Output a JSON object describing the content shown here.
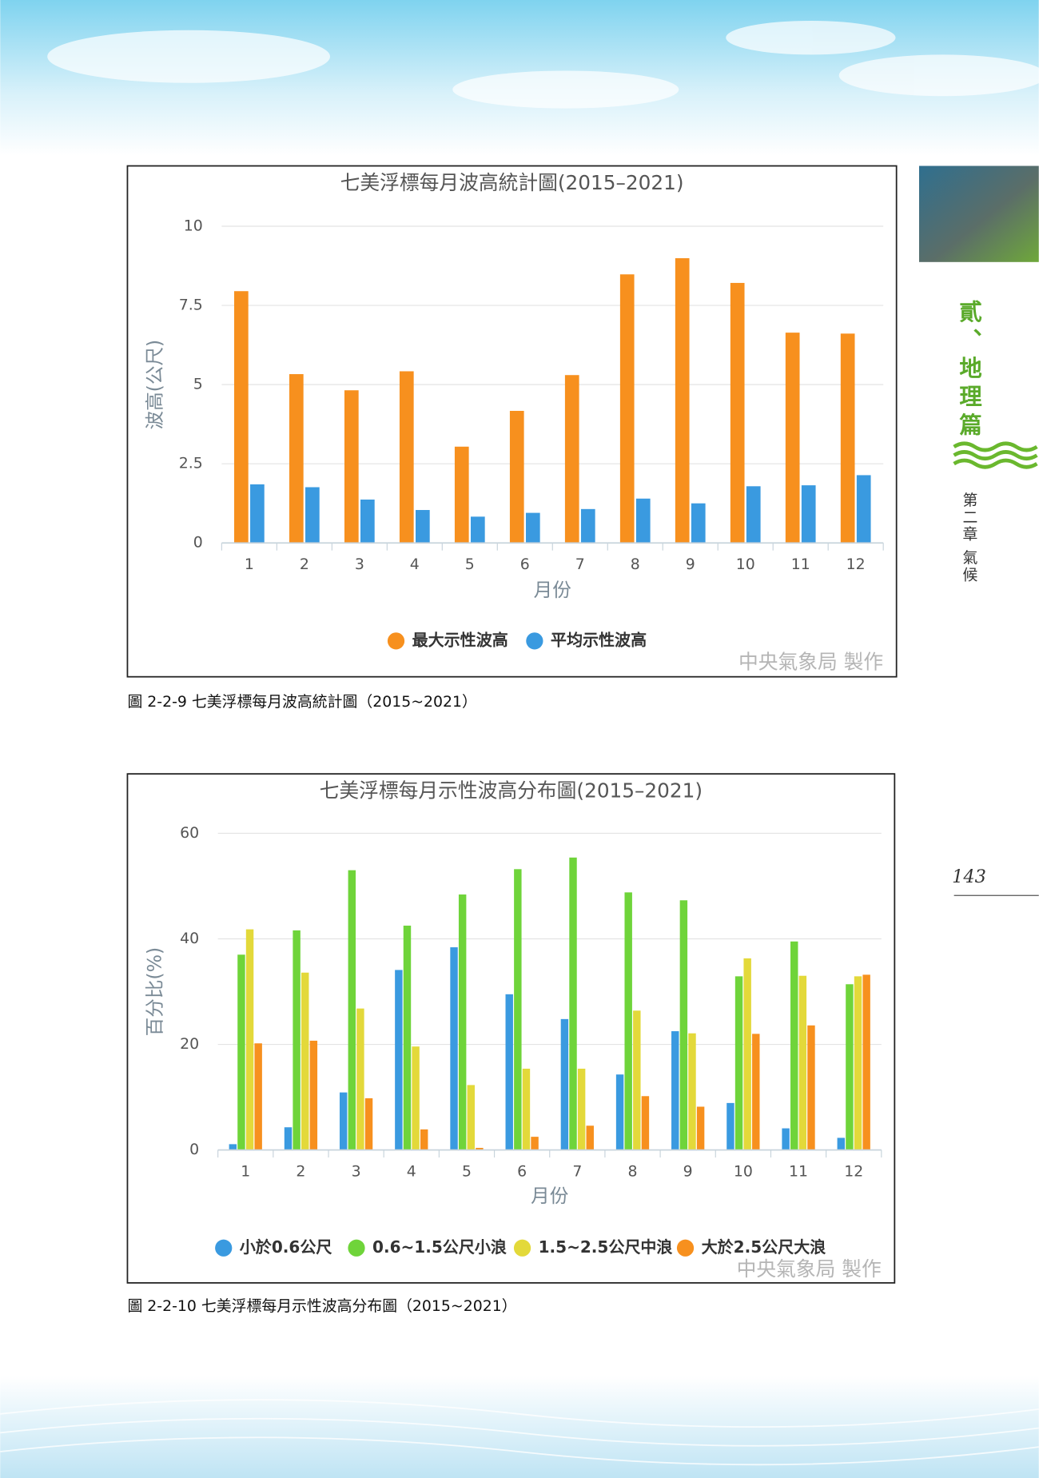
{
  "page": {
    "section": "貳、地理篇",
    "chapter": "第二章 氣候",
    "number": "143"
  },
  "chart_data": [
    {
      "type": "bar",
      "title": "七美浮標每月波高統計圖(2015–2021)",
      "x_label": "月份",
      "y_label": "波高(公尺)",
      "categories": [
        "1",
        "2",
        "3",
        "4",
        "5",
        "6",
        "7",
        "8",
        "9",
        "10",
        "11",
        "12"
      ],
      "series": [
        {
          "name": "最大示性波高",
          "color": "#f7901e",
          "values": [
            7.95,
            5.33,
            4.82,
            5.42,
            3.04,
            4.17,
            5.3,
            8.48,
            8.99,
            8.21,
            6.64,
            6.61
          ]
        },
        {
          "name": "平均示性波高",
          "color": "#3a9ae0",
          "values": [
            1.85,
            1.76,
            1.37,
            1.04,
            0.83,
            0.95,
            1.07,
            1.4,
            1.25,
            1.79,
            1.82,
            2.14
          ]
        }
      ],
      "ylim": [
        0,
        10
      ],
      "yticks": [
        0,
        2.5,
        5,
        7.5,
        10
      ],
      "grid": true,
      "credit": "中央氣象局 製作",
      "caption": "圖 2-2-9 七美浮標每月波高統計圖（2015~2021）"
    },
    {
      "type": "bar",
      "title": "七美浮標每月示性波高分布圖(2015–2021)",
      "x_label": "月份",
      "y_label": "百分比(%)",
      "categories": [
        "1",
        "2",
        "3",
        "4",
        "5",
        "6",
        "7",
        "8",
        "9",
        "10",
        "11",
        "12"
      ],
      "series": [
        {
          "name": "小於0.6公尺",
          "color": "#3a9ae0",
          "values": [
            1.1,
            4.3,
            10.9,
            34.1,
            38.4,
            29.5,
            24.8,
            14.3,
            22.5,
            8.9,
            4.1,
            2.3
          ]
        },
        {
          "name": "0.6~1.5公尺小浪",
          "color": "#6fd43a",
          "values": [
            37.0,
            41.6,
            53.0,
            42.5,
            48.4,
            53.2,
            55.4,
            48.8,
            47.3,
            32.9,
            39.5,
            31.4
          ]
        },
        {
          "name": "1.5~2.5公尺中浪",
          "color": "#e3d93a",
          "values": [
            41.8,
            33.6,
            26.8,
            19.6,
            12.3,
            15.4,
            15.4,
            26.4,
            22.1,
            36.3,
            33.0,
            32.9
          ]
        },
        {
          "name": "大於2.5公尺大浪",
          "color": "#f7901e",
          "values": [
            20.2,
            20.7,
            9.8,
            3.9,
            0.4,
            2.5,
            4.6,
            10.2,
            8.2,
            22.0,
            23.6,
            33.2
          ]
        }
      ],
      "ylim": [
        0,
        60
      ],
      "yticks": [
        0,
        20,
        40,
        60
      ],
      "grid": true,
      "credit": "中央氣象局 製作",
      "caption": "圖 2-2-10 七美浮標每月示性波高分布圖（2015~2021）"
    }
  ]
}
